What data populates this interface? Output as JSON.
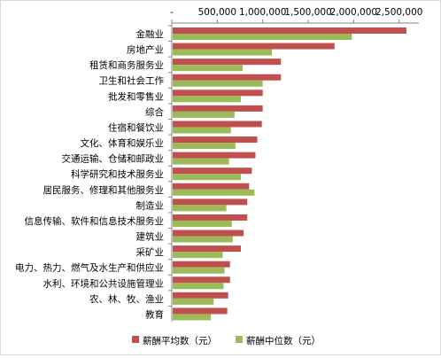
{
  "chart_data": {
    "type": "bar",
    "orientation": "horizontal",
    "categories": [
      "金融业",
      "房地产业",
      "租赁和商务服务业",
      "卫生和社会工作",
      "批发和零售业",
      "综合",
      "住宿和餐饮业",
      "文化、体育和娱乐业",
      "交通运输、仓储和邮政业",
      "科学研究和技术服务业",
      "居民服务、修理和其他服务业",
      "制造业",
      "信息传输、软件和信息技术服务业",
      "建筑业",
      "采矿业",
      "电力、热力、燃气及水生产和供应业",
      "水利、环境和公共设施管理业",
      "农、林、牧、渔业",
      "教育"
    ],
    "series": [
      {
        "name": "薪酬平均数（元）",
        "color": "#c0504d",
        "values": [
          2580000,
          1790000,
          1200000,
          1200000,
          1000000,
          1000000,
          990000,
          940000,
          920000,
          880000,
          850000,
          830000,
          830000,
          790000,
          760000,
          640000,
          640000,
          620000,
          610000
        ]
      },
      {
        "name": "薪酬中位数（元）",
        "color": "#9bbb59",
        "values": [
          1980000,
          1100000,
          780000,
          1000000,
          760000,
          690000,
          650000,
          700000,
          630000,
          760000,
          910000,
          600000,
          660000,
          670000,
          560000,
          580000,
          570000,
          460000,
          430000
        ]
      }
    ],
    "x_axis": {
      "position": "top",
      "tick_labels": [
        "-",
        "500,000",
        "1,000,000",
        "1,500,000",
        "2,000,000",
        "2,500,000"
      ],
      "tick_values": [
        0,
        500000,
        1000000,
        1500000,
        2000000,
        2500000
      ],
      "range": [
        0,
        2600000
      ]
    },
    "grid": false,
    "legend_position": "bottom"
  }
}
